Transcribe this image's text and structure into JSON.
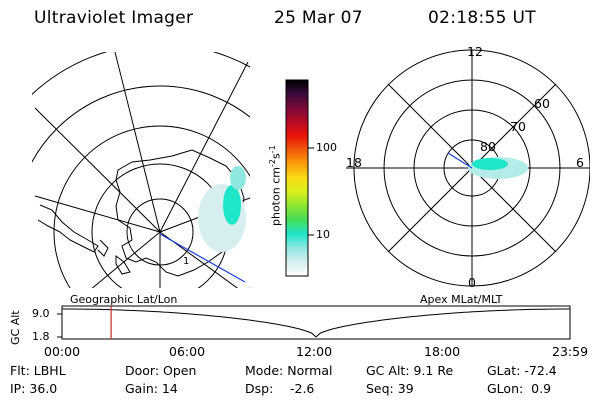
{
  "header": {
    "instrument": "Ultraviolet Imager",
    "date": "25 Mar 07",
    "time": "02:18:55 UT"
  },
  "geo_panel": {
    "label": "Geographic Lat/Lon"
  },
  "polar_panel": {
    "label": "Apex MLat/MLT",
    "mlt_labels": {
      "top": "12",
      "left": "18",
      "right": "6",
      "bottom": "0"
    },
    "lat_labels": [
      "60",
      "70",
      "80"
    ]
  },
  "colorbar": {
    "unit_text": "photon cm",
    "unit_exp1": "-2",
    "unit_mid": "s",
    "unit_exp2": "-1",
    "tick_labels": [
      "100",
      "10"
    ],
    "colors": [
      "#000000",
      "#3a0a3a",
      "#7a0a3a",
      "#b80a24",
      "#e8140a",
      "#f25a0a",
      "#f8a00a",
      "#f8dc14",
      "#d8f01e",
      "#8ce632",
      "#46dc5a",
      "#1ee6c8",
      "#8ee8e0",
      "#d6eef0",
      "#ffffff"
    ]
  },
  "altitude_plot": {
    "ylabel": "GC Alt",
    "yticks": [
      "9.0",
      "1.8"
    ],
    "xticks": [
      "00:00",
      "06:00",
      "12:00",
      "18:00",
      "23:59"
    ],
    "current_time_hours": 2.32,
    "marker_color": "#cc2a2a"
  },
  "status": {
    "row1": {
      "flt": "Flt: LBHL",
      "door": "Door: Open",
      "mode": "Mode: Normal",
      "gcalt": "GC Alt: 9.1 Re",
      "glat": "GLat: -72.4"
    },
    "row2": {
      "ip": "IP: 36.0",
      "gain": "Gain: 14",
      "dsp_label": "Dsp:",
      "dsp_value": "-2.6",
      "seq": "Seq: 39",
      "glon": "GLon:  0.9"
    }
  }
}
